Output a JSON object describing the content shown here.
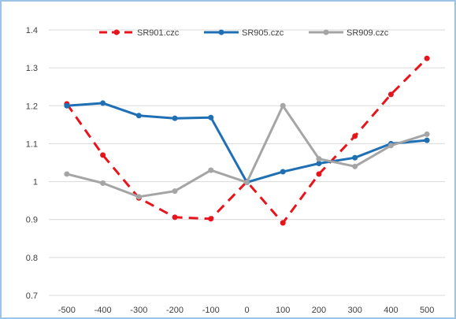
{
  "chart_data": {
    "type": "line",
    "x": [
      -500,
      -400,
      -300,
      -200,
      -100,
      0,
      100,
      200,
      300,
      400,
      500
    ],
    "y_ticks": [
      0.7,
      0.8,
      0.9,
      1,
      1.1,
      1.2,
      1.3,
      1.4
    ],
    "ylim": [
      0.7,
      1.4
    ],
    "grid": "horizontal",
    "legend_position": "top",
    "series": [
      {
        "name": "SR901.czc",
        "color": "#e8141c",
        "dash": "dashed",
        "values": [
          1.205,
          1.07,
          0.957,
          0.906,
          0.902,
          1.0,
          0.891,
          1.02,
          1.12,
          1.23,
          1.325
        ]
      },
      {
        "name": "SR905.czc",
        "color": "#1f6fb5",
        "dash": "solid",
        "values": [
          1.2,
          1.207,
          1.174,
          1.167,
          1.169,
          0.998,
          1.026,
          1.048,
          1.063,
          1.1,
          1.109
        ]
      },
      {
        "name": "SR909.czc",
        "color": "#a5a5a5",
        "dash": "solid",
        "values": [
          1.02,
          0.996,
          0.96,
          0.975,
          1.03,
          0.998,
          1.2,
          1.06,
          1.04,
          1.095,
          1.125
        ]
      }
    ]
  }
}
